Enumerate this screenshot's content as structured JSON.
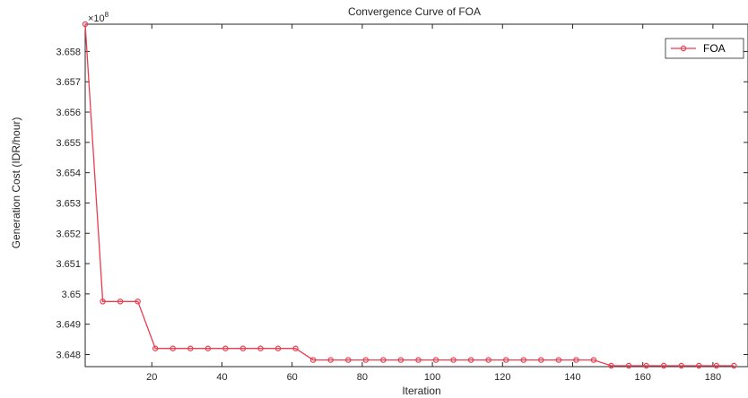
{
  "chart_data": {
    "type": "line",
    "title": "Convergence Curve of FOA",
    "xlabel": "Iteration",
    "ylabel": "Generation Cost (IDR/hour)",
    "y_exponent_label": "×10",
    "y_exponent_power": "8",
    "xlim": [
      1,
      190
    ],
    "ylim": [
      3.6476,
      3.6589
    ],
    "x_ticks": [
      20,
      40,
      60,
      80,
      100,
      120,
      140,
      160,
      180
    ],
    "x_tick_labels": [
      "20",
      "40",
      "60",
      "80",
      "100",
      "120",
      "140",
      "160",
      "180"
    ],
    "y_ticks": [
      3.648,
      3.649,
      3.65,
      3.651,
      3.652,
      3.653,
      3.654,
      3.655,
      3.656,
      3.657,
      3.658
    ],
    "y_tick_labels": [
      "3.648",
      "3.649",
      "3.65",
      "3.651",
      "3.652",
      "3.653",
      "3.654",
      "3.655",
      "3.656",
      "3.657",
      "3.658"
    ],
    "grid": false,
    "legend_position": "top-right",
    "color": "#ee3b4f",
    "series": [
      {
        "name": "FOA",
        "x": [
          1,
          6,
          11,
          16,
          21,
          26,
          31,
          36,
          41,
          46,
          51,
          56,
          61,
          66,
          71,
          76,
          81,
          86,
          91,
          96,
          101,
          106,
          111,
          116,
          121,
          126,
          131,
          136,
          141,
          146,
          151,
          156,
          161,
          166,
          171,
          176,
          181,
          186
        ],
        "y": [
          3.6589,
          3.64975,
          3.64975,
          3.64975,
          3.6482,
          3.6482,
          3.6482,
          3.6482,
          3.6482,
          3.6482,
          3.6482,
          3.6482,
          3.6482,
          3.64782,
          3.64782,
          3.64782,
          3.64782,
          3.64782,
          3.64782,
          3.64782,
          3.64782,
          3.64782,
          3.64782,
          3.64782,
          3.64782,
          3.64782,
          3.64782,
          3.64782,
          3.64782,
          3.64782,
          3.64763,
          3.64763,
          3.64763,
          3.64763,
          3.64763,
          3.64763,
          3.64763,
          3.64763
        ]
      }
    ]
  }
}
